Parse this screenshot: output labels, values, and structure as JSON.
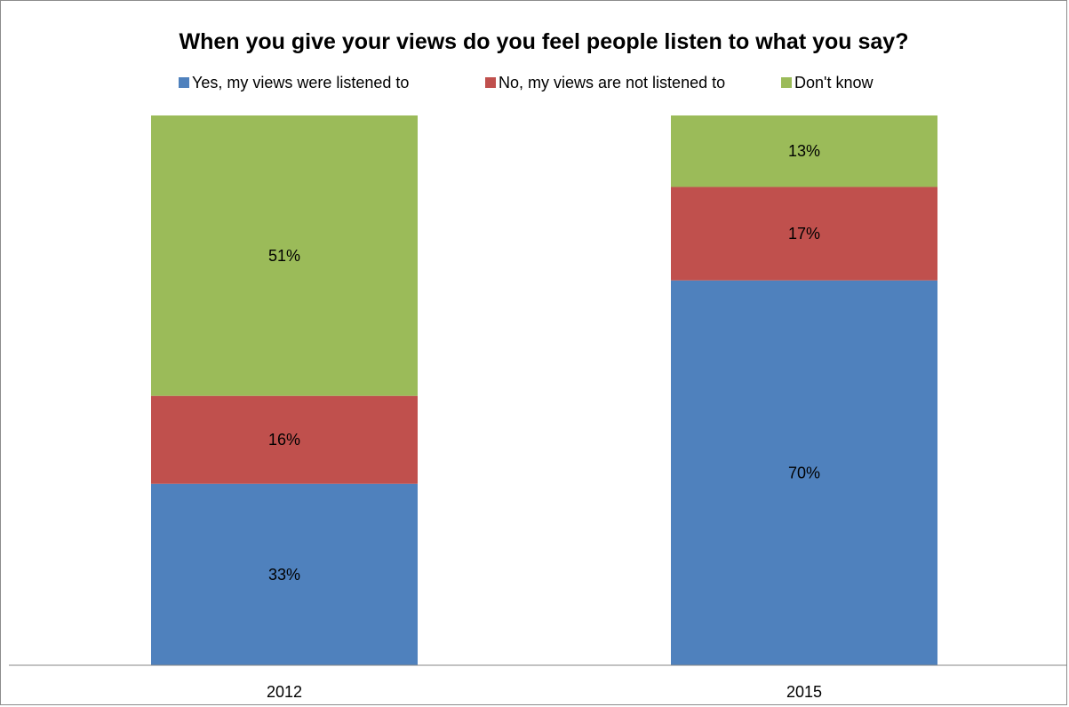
{
  "chart_data": {
    "type": "bar",
    "stacked": true,
    "title": "When you give your views do you feel people listen to what you say?",
    "xlabel": "",
    "ylabel": "",
    "categories": [
      "2012",
      "2015"
    ],
    "ylim": [
      0,
      100
    ],
    "grid": false,
    "legend_position": "top",
    "series": [
      {
        "name": "Yes, my views were listened to",
        "color": "#4F81BD",
        "values": [
          33,
          70
        ],
        "labels": [
          "33%",
          "70%"
        ]
      },
      {
        "name": "No, my views are not listened to",
        "color": "#C0504D",
        "values": [
          16,
          17
        ],
        "labels": [
          "16%",
          "17%"
        ]
      },
      {
        "name": "Don't know",
        "color": "#9BBB59",
        "values": [
          51,
          13
        ],
        "labels": [
          "51%",
          "13%"
        ]
      }
    ]
  }
}
